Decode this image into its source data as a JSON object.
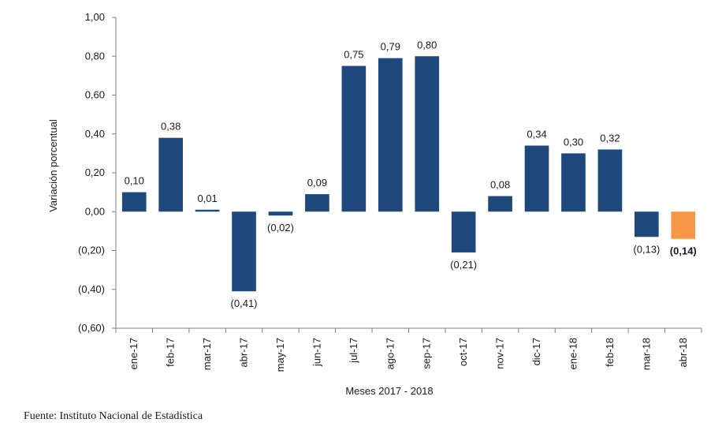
{
  "chart_data": {
    "type": "bar",
    "categories": [
      "ene-17",
      "feb-17",
      "mar-17",
      "abr-17",
      "may-17",
      "jun-17",
      "jul-17",
      "ago-17",
      "sep-17",
      "oct-17",
      "nov-17",
      "dic-17",
      "ene-18",
      "feb-18",
      "mar-18",
      "abr-18"
    ],
    "values": [
      0.1,
      0.38,
      0.01,
      -0.41,
      -0.02,
      0.09,
      0.75,
      0.79,
      0.8,
      -0.21,
      0.08,
      0.34,
      0.3,
      0.32,
      -0.13,
      -0.14
    ],
    "data_labels": [
      "0,10",
      "0,38",
      "0,01",
      "(0,41)",
      "(0,02)",
      "0,09",
      "0,75",
      "0,79",
      "0,80",
      "(0,21)",
      "0,08",
      "0,34",
      "0,30",
      "0,32",
      "(0,13)",
      "(0,14)"
    ],
    "highlight_index": 15,
    "bar_color": "#1f497d",
    "highlight_color": "#f79646",
    "ylim": [
      -0.6,
      1.0
    ],
    "yticks": [
      1.0,
      0.8,
      0.6,
      0.4,
      0.2,
      0.0,
      -0.2,
      -0.4,
      -0.6
    ],
    "ytick_labels": [
      "1,00",
      "0,80",
      "0,60",
      "0,40",
      "0,20",
      "0,00",
      "(0,20)",
      "(0,40)",
      "(0,60)"
    ],
    "xlabel": "Meses 2017 - 2018",
    "ylabel": "Variación porcentual",
    "grid": false,
    "legend": "none"
  },
  "source": "Fuente: Instituto Nacional de Estadística"
}
